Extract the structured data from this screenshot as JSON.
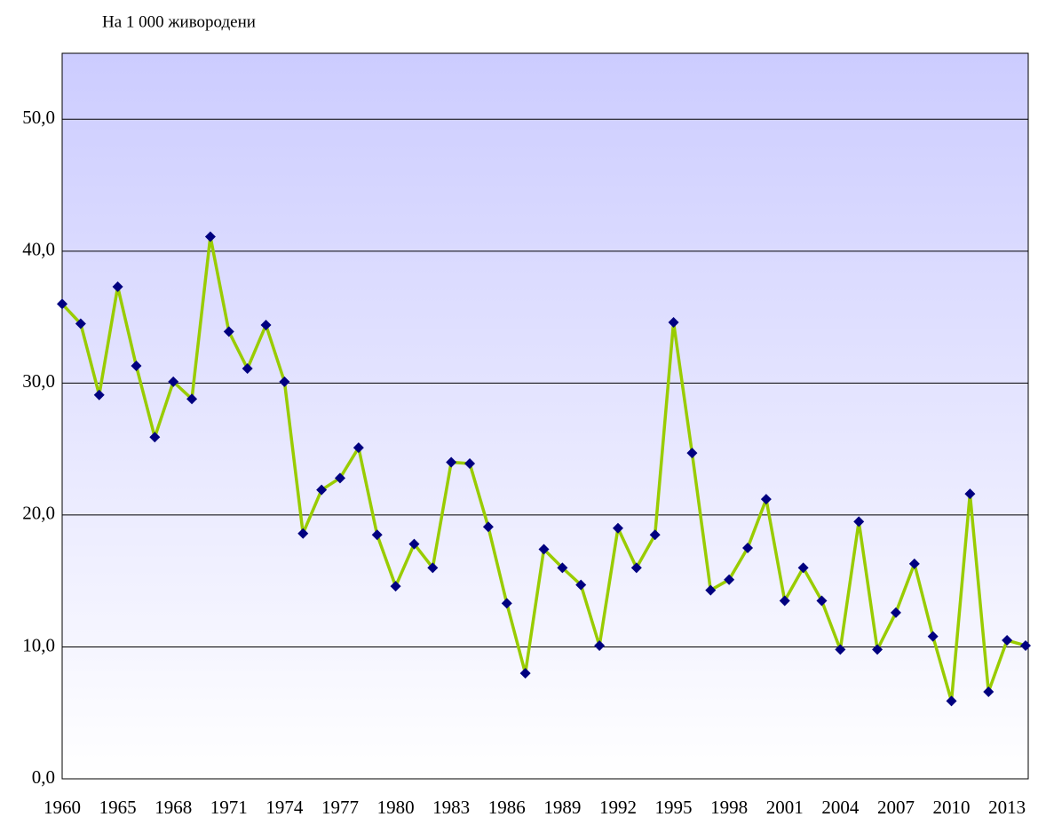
{
  "chart_data": {
    "type": "line",
    "y_label": "На 1 000 живородени",
    "categories": [
      "1960",
      null,
      null,
      "1965",
      null,
      null,
      "1968",
      null,
      null,
      "1971",
      null,
      null,
      "1974",
      null,
      null,
      "1977",
      null,
      null,
      "1980",
      null,
      null,
      "1983",
      null,
      null,
      "1986",
      null,
      null,
      "1989",
      null,
      null,
      "1992",
      null,
      null,
      "1995",
      null,
      null,
      "1998",
      null,
      null,
      "2001",
      null,
      null,
      "2004",
      null,
      null,
      "2007",
      null,
      null,
      "2010",
      null,
      null,
      "2013",
      null
    ],
    "series": [
      {
        "color": "#99cc00",
        "marker_color": "#000080",
        "values": [
          36.0,
          34.5,
          29.1,
          37.3,
          31.3,
          25.9,
          30.1,
          28.8,
          41.1,
          33.9,
          31.1,
          34.4,
          30.1,
          18.6,
          21.9,
          22.8,
          25.1,
          18.5,
          14.6,
          17.8,
          16.0,
          24.0,
          23.9,
          19.1,
          13.3,
          8.0,
          17.4,
          16.0,
          14.7,
          10.1,
          19.0,
          16.0,
          18.5,
          34.6,
          24.7,
          14.3,
          15.1,
          17.5,
          21.2,
          13.5,
          16.0,
          13.5,
          9.8,
          19.5,
          9.8,
          12.6,
          16.3,
          10.8,
          5.9,
          21.6,
          6.6,
          10.5,
          10.1
        ]
      }
    ],
    "ylim": [
      0,
      55
    ],
    "yticks": [
      {
        "value": 0,
        "label": "0,0"
      },
      {
        "value": 10,
        "label": "10,0"
      },
      {
        "value": 20,
        "label": "20,0"
      },
      {
        "value": 30,
        "label": "30,0"
      },
      {
        "value": 40,
        "label": "40,0"
      },
      {
        "value": 50,
        "label": "50,0"
      }
    ],
    "grid": true,
    "background": [
      "#ccccff",
      "#ffffff"
    ]
  }
}
